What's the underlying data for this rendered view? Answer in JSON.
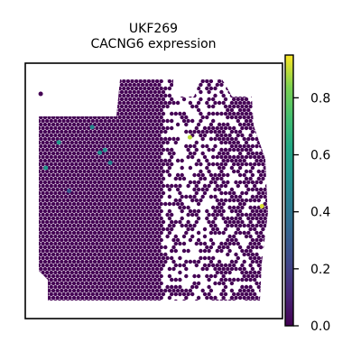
{
  "chart_data": {
    "type": "scatter",
    "subtype": "spatial-spot-plot",
    "title_lines": [
      "UKF269",
      "CACNG6 expression"
    ],
    "xlabel": "",
    "ylabel": "",
    "colormap": "viridis",
    "grid": false,
    "color_scale": {
      "vmin": 0.0,
      "vmax": 0.95,
      "ticks": [
        0.0,
        0.2,
        0.4,
        0.6,
        0.8
      ],
      "tick_labels": [
        "0.0",
        "0.2",
        "0.4",
        "0.6",
        "0.8"
      ]
    },
    "background_value": 0.0,
    "highlighted_spots": [
      {
        "x": 0.06,
        "y": 0.88,
        "value": 0.0
      },
      {
        "x": 0.13,
        "y": 0.69,
        "value": 0.55
      },
      {
        "x": 0.26,
        "y": 0.75,
        "value": 0.48
      },
      {
        "x": 0.29,
        "y": 0.65,
        "value": 0.52
      },
      {
        "x": 0.31,
        "y": 0.66,
        "value": 0.5
      },
      {
        "x": 0.33,
        "y": 0.61,
        "value": 0.45
      },
      {
        "x": 0.08,
        "y": 0.59,
        "value": 0.55
      },
      {
        "x": 0.17,
        "y": 0.5,
        "value": 0.3
      },
      {
        "x": 0.64,
        "y": 0.71,
        "value": 0.9
      },
      {
        "x": 0.92,
        "y": 0.44,
        "value": 0.92
      }
    ]
  }
}
